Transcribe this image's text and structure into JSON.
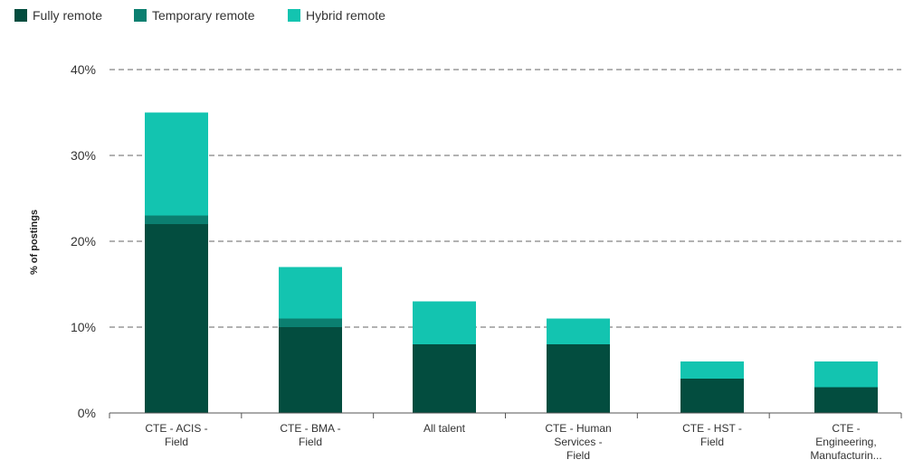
{
  "chart_data": {
    "type": "bar",
    "stacked": true,
    "title": "",
    "xlabel": "",
    "ylabel": "% of postings",
    "ylim": [
      0,
      40
    ],
    "yticks": [
      0,
      10,
      20,
      30,
      40
    ],
    "ytick_labels": [
      "0%",
      "10%",
      "20%",
      "30%",
      "40%"
    ],
    "grid": "horizontal dashed",
    "legend_position": "top-left",
    "categories": [
      [
        "CTE - ACIS -",
        "Field"
      ],
      [
        "CTE - BMA -",
        "Field"
      ],
      [
        "All talent"
      ],
      [
        "CTE - Human",
        "Services -",
        "Field"
      ],
      [
        "CTE - HST -",
        "Field"
      ],
      [
        "CTE -",
        "Engineering,",
        "Manufacturin..."
      ]
    ],
    "series": [
      {
        "name": "Fully remote",
        "color": "#034d3f",
        "values": [
          22,
          10,
          8,
          8,
          4,
          3
        ]
      },
      {
        "name": "Temporary remote",
        "color": "#0b7f70",
        "values": [
          1,
          1,
          0,
          0,
          0,
          0
        ]
      },
      {
        "name": "Hybrid remote",
        "color": "#13c4b0",
        "values": [
          12,
          6,
          5,
          3,
          2,
          3
        ]
      }
    ]
  }
}
